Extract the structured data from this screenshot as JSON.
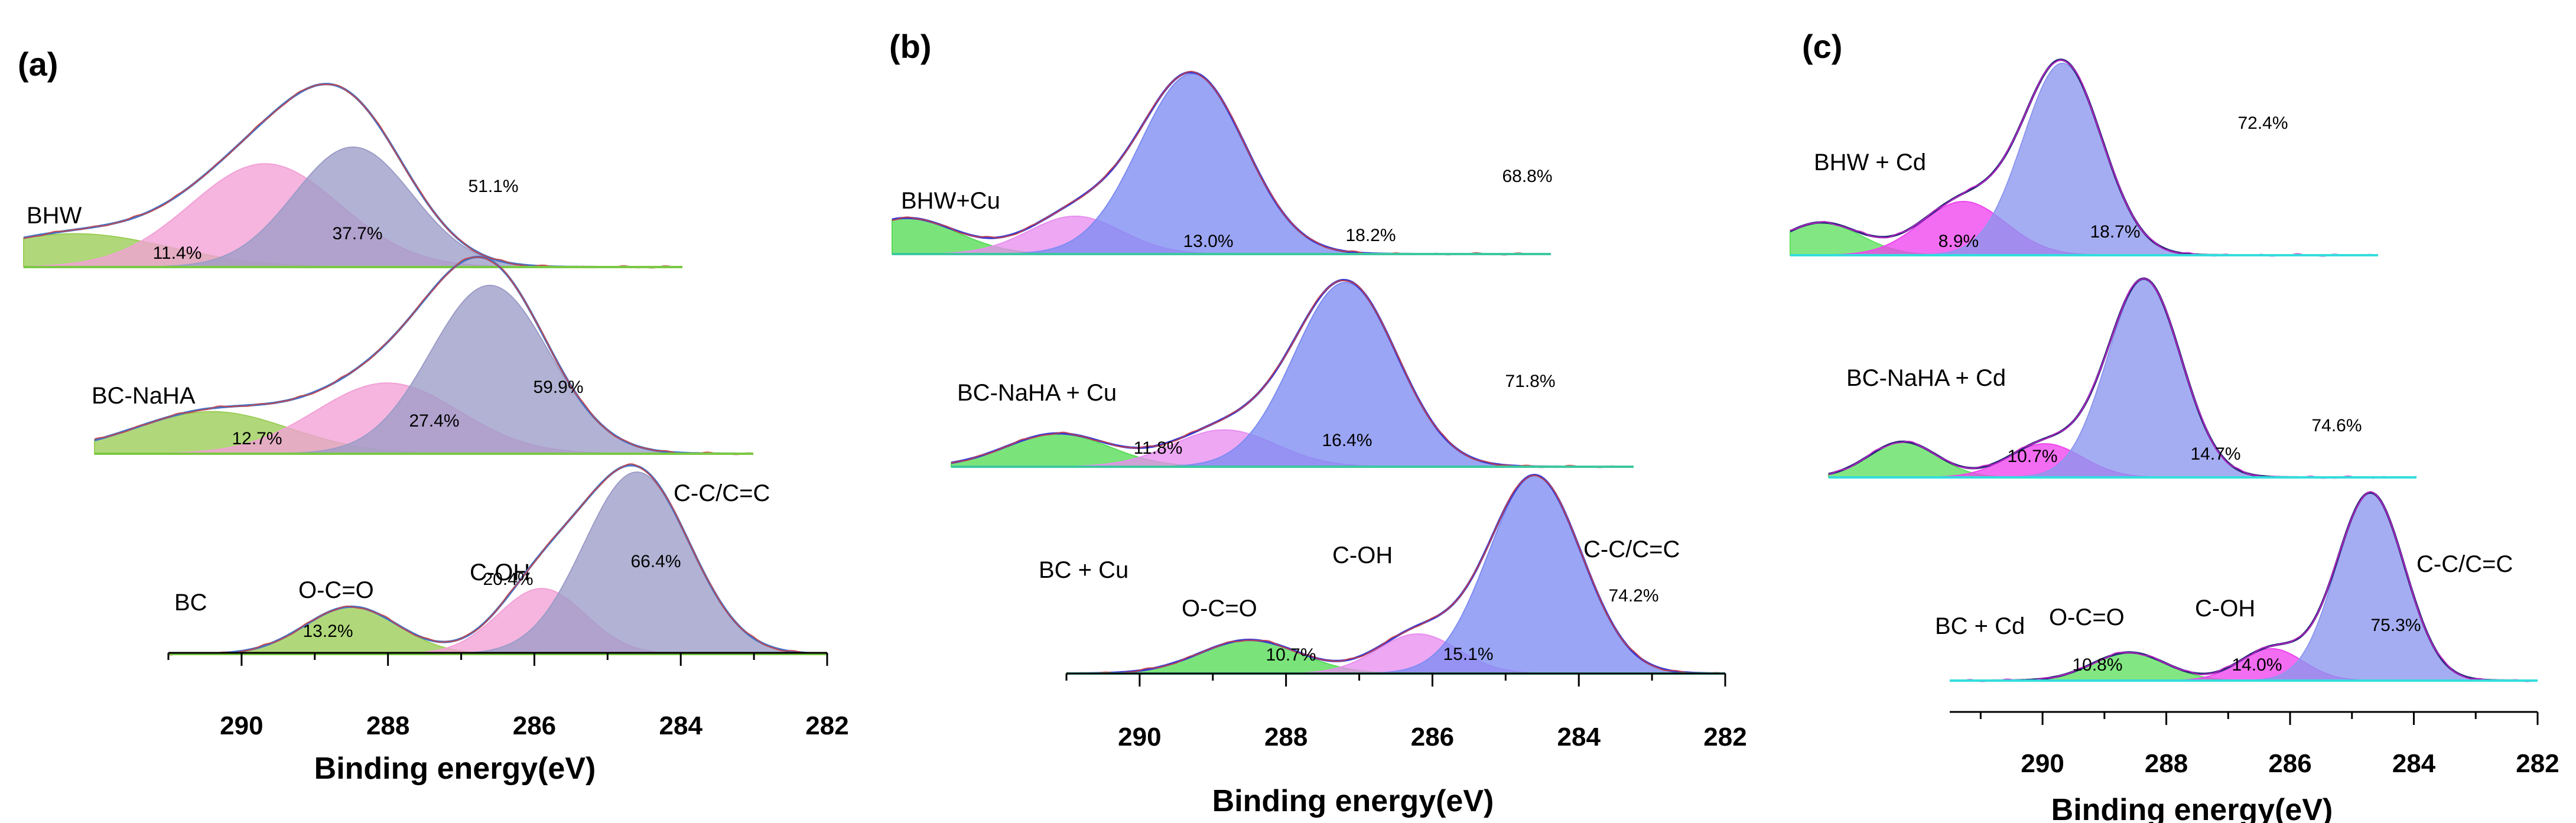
{
  "chart_data": [
    {
      "type": "area",
      "panel_label": "(a)",
      "xlabel": "Binding energy(eV)",
      "xlim": [
        291,
        282
      ],
      "xticks": [
        290,
        288,
        286,
        284,
        282
      ],
      "component_names": [
        "O-C=O",
        "C-OH",
        "C-C/C=C"
      ],
      "colors": {
        "O-C=O": "#9acd55",
        "C-OH": "#f2a0d6",
        "C-C/C=C": "#9c9cc8",
        "envelope": "#4472c4",
        "raw": "#d24040",
        "baseline": "#7ac943"
      },
      "series": [
        {
          "name": "BHW",
          "components": [
            {
              "name": "O-C=O",
              "center": 290.3,
              "fwhm": 3.0,
              "height": 0.2,
              "percent": "11.4%"
            },
            {
              "name": "C-OH",
              "center": 287.7,
              "fwhm": 2.4,
              "height": 0.62,
              "percent": "37.7%"
            },
            {
              "name": "C-C/C=C",
              "center": 286.5,
              "fwhm": 1.9,
              "height": 0.72,
              "percent": "51.1%"
            }
          ]
        },
        {
          "name": "BC-NaHA",
          "components": [
            {
              "name": "O-C=O",
              "center": 289.4,
              "fwhm": 2.5,
              "height": 0.25,
              "percent": "12.7%"
            },
            {
              "name": "C-OH",
              "center": 287.0,
              "fwhm": 2.3,
              "height": 0.42,
              "percent": "27.4%"
            },
            {
              "name": "C-C/C=C",
              "center": 285.6,
              "fwhm": 1.9,
              "height": 1.0,
              "percent": "59.9%"
            }
          ]
        },
        {
          "name": "BC",
          "components": [
            {
              "name": "O-C=O",
              "center": 288.5,
              "fwhm": 1.5,
              "height": 0.26,
              "percent": "13.2%"
            },
            {
              "name": "C-OH",
              "center": 285.9,
              "fwhm": 1.4,
              "height": 0.36,
              "percent": "20.4%"
            },
            {
              "name": "C-C/C=C",
              "center": 284.6,
              "fwhm": 1.7,
              "height": 1.0,
              "percent": "66.4%"
            }
          ]
        }
      ]
    },
    {
      "type": "area",
      "panel_label": "(b)",
      "xlabel": "Binding energy(eV)",
      "xlim": [
        291,
        282
      ],
      "xticks": [
        290,
        288,
        286,
        284,
        282
      ],
      "component_names": [
        "O-C=O",
        "C-OH",
        "C-C/C=C"
      ],
      "colors": {
        "O-C=O": "#55dc55",
        "C-OH": "#e88ef0",
        "C-C/C=C": "#7d8cf2",
        "envelope": "#3a3ad0",
        "raw": "#d24040",
        "baseline": "#3cc8a0"
      },
      "series": [
        {
          "name": "BHW+Cu",
          "components": [
            {
              "name": "O-C=O",
              "center": 290.8,
              "fwhm": 1.6,
              "height": 0.2,
              "percent": "13.0%"
            },
            {
              "name": "C-OH",
              "center": 288.5,
              "fwhm": 1.5,
              "height": 0.21,
              "percent": "18.2%"
            },
            {
              "name": "C-C/C=C",
              "center": 286.9,
              "fwhm": 1.7,
              "height": 1.0,
              "percent": "68.8%"
            }
          ]
        },
        {
          "name": "BC-NaHA + Cu",
          "components": [
            {
              "name": "O-C=O",
              "center": 289.6,
              "fwhm": 1.6,
              "height": 0.18,
              "percent": "11.8%"
            },
            {
              "name": "C-OH",
              "center": 287.4,
              "fwhm": 1.6,
              "height": 0.2,
              "percent": "16.4%"
            },
            {
              "name": "C-C/C=C",
              "center": 285.8,
              "fwhm": 1.6,
              "height": 1.0,
              "percent": "71.8%"
            }
          ]
        },
        {
          "name": "BC + Cu",
          "components": [
            {
              "name": "O-C=O",
              "center": 288.5,
              "fwhm": 1.6,
              "height": 0.17,
              "percent": "10.7%"
            },
            {
              "name": "C-OH",
              "center": 286.2,
              "fwhm": 1.3,
              "height": 0.2,
              "percent": "15.1%"
            },
            {
              "name": "C-C/C=C",
              "center": 284.6,
              "fwhm": 1.5,
              "height": 1.0,
              "percent": "74.2%"
            }
          ]
        }
      ]
    },
    {
      "type": "area",
      "panel_label": "(c)",
      "xlabel": "Binding energy(eV)",
      "xlim": [
        291.5,
        282
      ],
      "xticks": [
        290,
        288,
        286,
        284,
        282
      ],
      "component_names": [
        "O-C=O",
        "C-OH",
        "C-C/C=C"
      ],
      "colors": {
        "O-C=O": "#5fe05f",
        "C-OH": "#ee44ee",
        "C-C/C=C": "#8c96ee",
        "envelope": "#2a2a7a",
        "raw": "#cc22cc",
        "baseline": "#33dddd"
      },
      "series": [
        {
          "name": "BHW + Cd",
          "components": [
            {
              "name": "O-C=O",
              "center": 291.0,
              "fwhm": 1.5,
              "height": 0.17,
              "percent": "8.9%"
            },
            {
              "name": "C-OH",
              "center": 288.7,
              "fwhm": 1.6,
              "height": 0.28,
              "percent": "18.7%"
            },
            {
              "name": "C-C/C=C",
              "center": 287.1,
              "fwhm": 1.5,
              "height": 1.0,
              "percent": "72.4%"
            }
          ]
        },
        {
          "name": "BC-NaHA + Cd",
          "components": [
            {
              "name": "O-C=O",
              "center": 290.3,
              "fwhm": 1.3,
              "height": 0.18,
              "percent": "10.7%"
            },
            {
              "name": "C-OH",
              "center": 288.0,
              "fwhm": 1.4,
              "height": 0.17,
              "percent": "14.7%"
            },
            {
              "name": "C-C/C=C",
              "center": 286.4,
              "fwhm": 1.4,
              "height": 1.0,
              "percent": "74.6%"
            }
          ]
        },
        {
          "name": "BC + Cd",
          "components": [
            {
              "name": "O-C=O",
              "center": 288.6,
              "fwhm": 1.4,
              "height": 0.15,
              "percent": "10.8%"
            },
            {
              "name": "C-OH",
              "center": 286.3,
              "fwhm": 1.2,
              "height": 0.17,
              "percent": "14.0%"
            },
            {
              "name": "C-C/C=C",
              "center": 284.7,
              "fwhm": 1.3,
              "height": 1.0,
              "percent": "75.3%"
            }
          ]
        }
      ]
    }
  ]
}
